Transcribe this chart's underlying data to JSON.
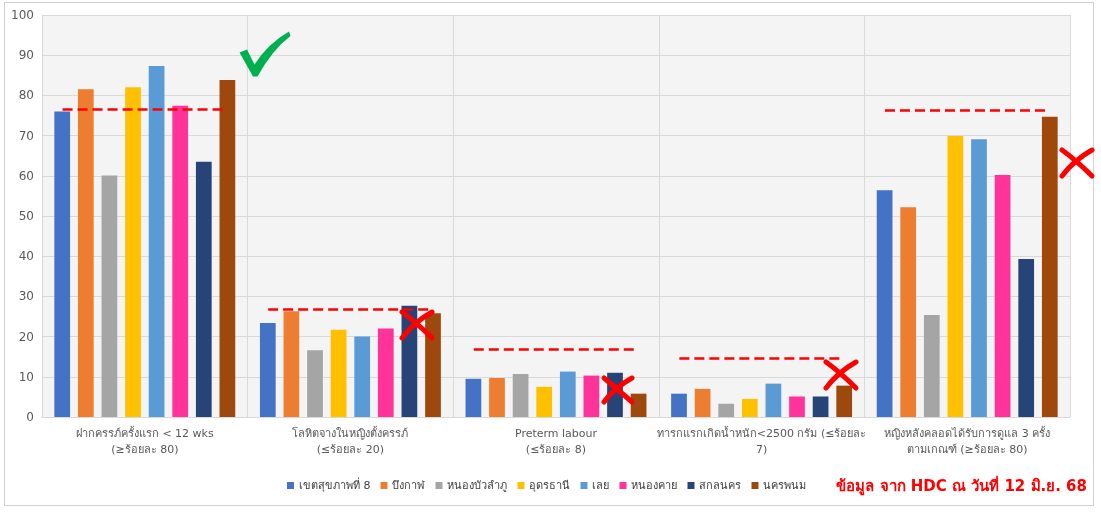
{
  "chart_data": {
    "type": "bar",
    "categories": [
      "ฝากครรภ์ครั้งแรก < 12 wks\n(≥ร้อยละ 80)",
      "โลหิตจางในหญิงตั้งครรภ์\n(≤ร้อยละ 20)",
      "Preterm labour\n(≤ร้อยละ 8)",
      "ทารกแรกเกิดน้ำหนัก<2500 กรัม (≤ร้อยละ\n7)",
      "หญิงหลังคลอดได้รับการดูแล 3 ครั้ง\nตามเกณฑ์ (≥ร้อยละ 80)"
    ],
    "series": [
      {
        "name": "เขตสุขภาพที่ 8",
        "color": "#4472c4",
        "values": [
          76.0,
          23.4,
          9.5,
          5.8,
          56.4
        ]
      },
      {
        "name": "บึงกาฬ",
        "color": "#ed7d31",
        "values": [
          81.5,
          26.3,
          9.7,
          7.0,
          52.2
        ]
      },
      {
        "name": "หนองบัวลำภู",
        "color": "#a5a5a5",
        "values": [
          60.1,
          16.6,
          10.7,
          3.3,
          25.4
        ]
      },
      {
        "name": "อุดรธานี",
        "color": "#ffc000",
        "values": [
          82.0,
          21.7,
          7.5,
          4.5,
          69.9
        ]
      },
      {
        "name": "เลย",
        "color": "#5b9bd5",
        "values": [
          87.3,
          20.0,
          11.3,
          8.3,
          69.1
        ]
      },
      {
        "name": "หนองคาย",
        "color": "#ff3399",
        "values": [
          77.4,
          22.0,
          10.3,
          5.1,
          60.2
        ]
      },
      {
        "name": "สกลนคร",
        "color": "#264478",
        "values": [
          63.5,
          27.7,
          11.0,
          5.1,
          39.3
        ]
      },
      {
        "name": "นครพนม",
        "color": "#9e480e",
        "values": [
          83.8,
          25.8,
          5.8,
          7.8,
          74.7
        ]
      }
    ],
    "ylim": [
      0,
      100
    ],
    "yticks": [
      0,
      10,
      20,
      30,
      40,
      50,
      60,
      70,
      80,
      90,
      100
    ],
    "grid": true,
    "legend": "bottom",
    "ref_lines": [
      {
        "axis": "y",
        "value": 76.6,
        "color": "#ff0000",
        "line_style": "dashed"
      },
      {
        "axis": "y",
        "value": 26.7,
        "color": "#ff0000",
        "line_style": "dashed"
      },
      {
        "axis": "y",
        "value": 16.8,
        "color": "#ff0000",
        "line_style": "dashed"
      },
      {
        "axis": "y",
        "value": 14.7,
        "color": "#ff0000",
        "line_style": "dashed"
      },
      {
        "axis": "y",
        "value": 76.4,
        "color": "#ff0000",
        "line_style": "dashed"
      }
    ],
    "annotations": [
      "ข้อมูล จาก HDC ณ วันที่ 12 มิ.ย. 68"
    ]
  }
}
